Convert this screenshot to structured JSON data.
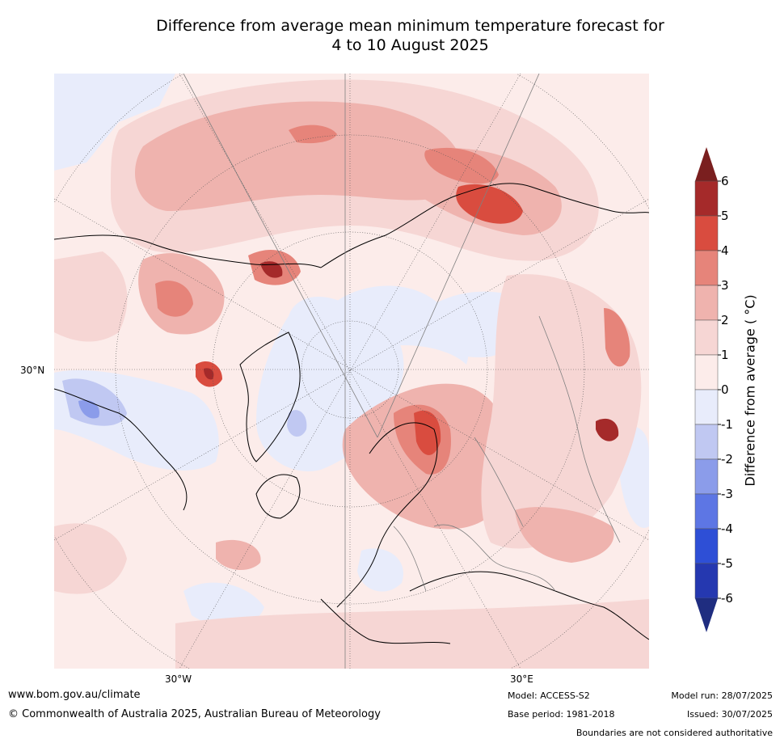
{
  "title_line1": "Difference from average mean minimum temperature forecast for",
  "title_line2": "4 to 10 August 2025",
  "map": {
    "projection": "north-polar-stereographic",
    "lat_label": "30°N",
    "lon_labels": [
      "30°W",
      "30°E"
    ]
  },
  "colorbar": {
    "label": "Difference from average ( °C)",
    "ticks": [
      "6",
      "5",
      "4",
      "3",
      "2",
      "1",
      "0",
      "-1",
      "-2",
      "-3",
      "-4",
      "-5",
      "-6"
    ],
    "colors": [
      "#a52a2a",
      "#d94c3f",
      "#e6847a",
      "#efb3ae",
      "#f6d6d4",
      "#fcecea",
      "#e8ecfb",
      "#c0c8f2",
      "#8b9cea",
      "#5d76e4",
      "#2e4fd6",
      "#2538b0"
    ],
    "over_color": "#7a1f1f",
    "under_color": "#1f2d80"
  },
  "footer": {
    "url": "www.bom.gov.au/climate",
    "copyright": "© Commonwealth of Australia 2025, Australian Bureau of Meteorology",
    "model": "Model: ACCESS-S2",
    "base_period": "Base period: 1981-2018",
    "model_run": "Model run: 28/07/2025",
    "issued": "Issued: 30/07/2025",
    "boundaries": "Boundaries are not considered authoritative"
  }
}
